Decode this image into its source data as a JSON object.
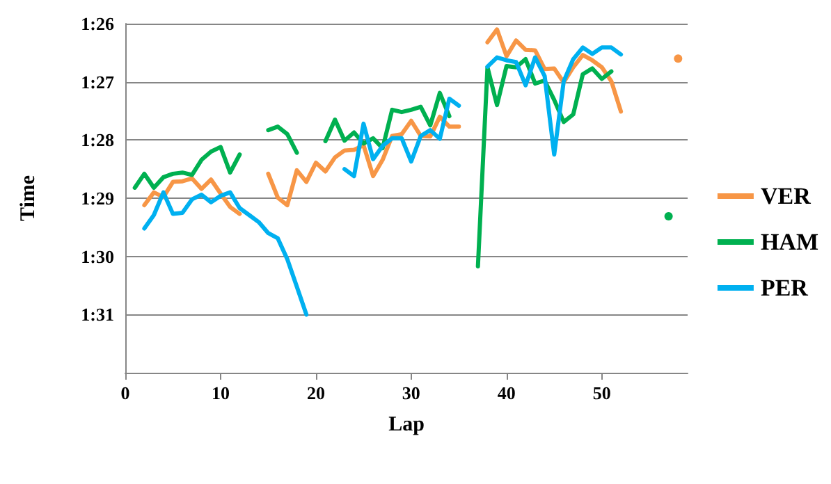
{
  "chart_data": {
    "type": "line",
    "xlabel": "Lap",
    "ylabel": "Time",
    "x": [
      1,
      2,
      3,
      4,
      5,
      6,
      7,
      8,
      9,
      10,
      11,
      12,
      13,
      14,
      15,
      16,
      17,
      18,
      19,
      20,
      21,
      22,
      23,
      24,
      25,
      26,
      27,
      28,
      29,
      30,
      31,
      32,
      33,
      34,
      35,
      36,
      37,
      38,
      39,
      40,
      41,
      42,
      43,
      44,
      45,
      46,
      47,
      48,
      49,
      50,
      51,
      52,
      53,
      54,
      55,
      56,
      57,
      58
    ],
    "series": [
      {
        "name": "VER",
        "color": "#f79646",
        "values": [
          null,
          89.12,
          88.9,
          88.98,
          88.72,
          88.71,
          88.66,
          88.84,
          88.68,
          88.92,
          89.15,
          89.27,
          null,
          null,
          88.58,
          88.99,
          89.12,
          88.52,
          88.72,
          88.39,
          88.54,
          88.3,
          88.18,
          88.17,
          88.09,
          88.62,
          88.34,
          87.93,
          87.9,
          87.67,
          87.93,
          87.94,
          87.6,
          87.77,
          87.77,
          null,
          null,
          86.32,
          86.1,
          86.56,
          86.29,
          86.45,
          86.46,
          86.78,
          86.77,
          87.01,
          86.75,
          86.54,
          86.63,
          86.75,
          86.99,
          87.51,
          null,
          null,
          null,
          null,
          null,
          86.6
        ]
      },
      {
        "name": "HAM",
        "color": "#00b050",
        "values": [
          88.82,
          88.58,
          88.82,
          88.64,
          88.58,
          88.56,
          88.6,
          88.34,
          88.2,
          88.12,
          88.56,
          88.25,
          null,
          null,
          87.83,
          87.77,
          87.9,
          88.22,
          null,
          null,
          88.02,
          87.65,
          88.01,
          87.87,
          88.06,
          87.97,
          88.14,
          87.48,
          87.52,
          87.48,
          87.43,
          87.75,
          87.19,
          87.59,
          null,
          null,
          90.17,
          86.75,
          87.4,
          86.73,
          86.75,
          86.61,
          87.03,
          86.98,
          87.31,
          87.69,
          87.56,
          86.87,
          86.77,
          86.95,
          86.82,
          null,
          null,
          null,
          null,
          null,
          89.31,
          null
        ]
      },
      {
        "name": "PER",
        "color": "#00b0f0",
        "values": [
          null,
          89.52,
          89.29,
          88.9,
          89.27,
          89.25,
          89.02,
          88.94,
          89.07,
          88.96,
          88.9,
          89.17,
          89.29,
          89.41,
          89.6,
          89.69,
          90.05,
          90.52,
          91.0,
          null,
          null,
          null,
          88.5,
          88.62,
          87.72,
          88.33,
          88.1,
          87.97,
          87.97,
          88.37,
          87.93,
          87.83,
          87.98,
          87.29,
          87.41,
          null,
          null,
          86.74,
          86.58,
          86.63,
          86.66,
          87.06,
          86.58,
          86.9,
          88.25,
          86.99,
          86.61,
          86.41,
          86.52,
          86.41,
          86.41,
          86.53,
          null,
          null,
          null,
          null,
          null,
          null
        ]
      }
    ],
    "xlim": [
      0,
      59
    ],
    "xticks": [
      0,
      10,
      20,
      30,
      40,
      50
    ],
    "ylim": [
      92,
      86
    ],
    "yticks": [
      {
        "value": 86,
        "label": "1:26"
      },
      {
        "value": 87,
        "label": "1:27"
      },
      {
        "value": 88,
        "label": "1:28"
      },
      {
        "value": 89,
        "label": "1:29"
      },
      {
        "value": 90,
        "label": "1:30"
      },
      {
        "value": 91,
        "label": "1:31"
      },
      {
        "value": 92,
        "label": null
      }
    ],
    "grid": "y",
    "legend": "right",
    "marker": "none",
    "line_style": "solid"
  }
}
